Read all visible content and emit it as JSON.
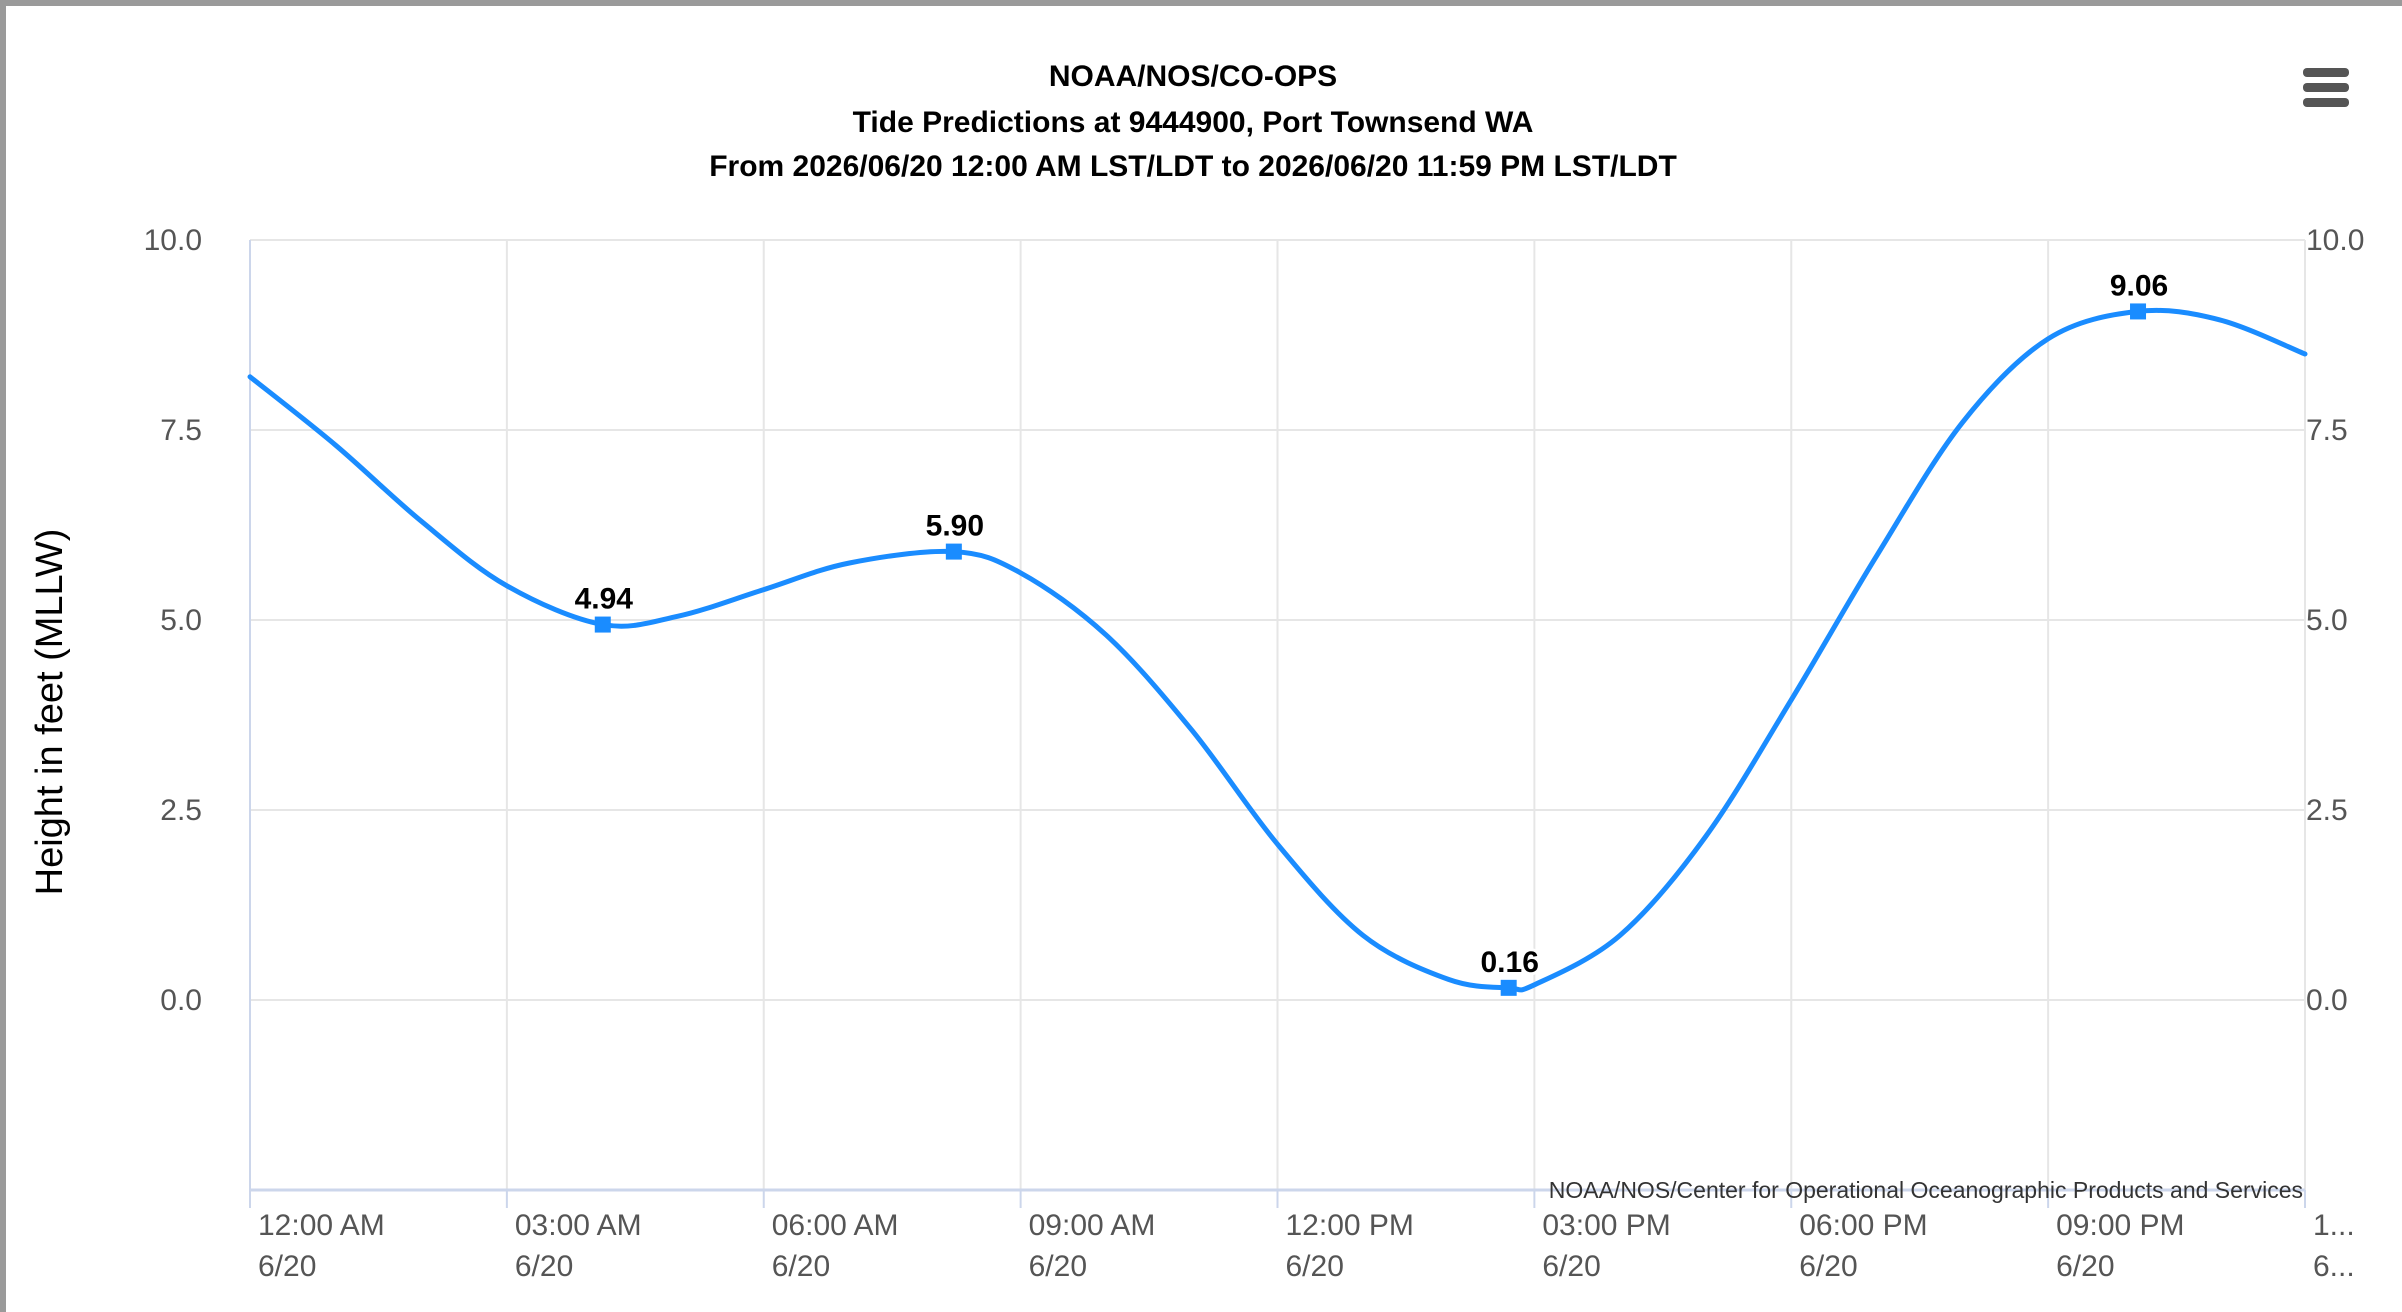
{
  "chart_data": {
    "type": "line",
    "title": "NOAA/NOS/CO-OPS",
    "subtitle": [
      "Tide Predictions at 9444900, Port Townsend WA",
      "From 2026/06/20 12:00 AM LST/LDT to 2026/06/20 11:59 PM LST/LDT"
    ],
    "ylabel": "Height in feet (MLLW)",
    "xlabel": "",
    "ylim": [
      -2.5,
      10.0
    ],
    "xlim_hours": [
      0,
      24
    ],
    "y_ticks": [
      "10.0",
      "7.5",
      "5.0",
      "2.5",
      "0.0"
    ],
    "y_tick_values": [
      10.0,
      7.5,
      5.0,
      2.5,
      0.0
    ],
    "x_ticks": [
      {
        "hour": 0,
        "time": "12:00 AM",
        "date": "6/20"
      },
      {
        "hour": 3,
        "time": "03:00 AM",
        "date": "6/20"
      },
      {
        "hour": 6,
        "time": "06:00 AM",
        "date": "6/20"
      },
      {
        "hour": 9,
        "time": "09:00 AM",
        "date": "6/20"
      },
      {
        "hour": 12,
        "time": "12:00 PM",
        "date": "6/20"
      },
      {
        "hour": 15,
        "time": "03:00 PM",
        "date": "6/20"
      },
      {
        "hour": 18,
        "time": "06:00 PM",
        "date": "6/20"
      },
      {
        "hour": 21,
        "time": "09:00 PM",
        "date": "6/20"
      },
      {
        "hour": 24,
        "time": "1...",
        "date": "6..."
      }
    ],
    "series": [
      {
        "color": "#1a8cff",
        "x_hours": [
          0,
          1,
          2,
          3,
          4.12,
          5,
          6,
          7,
          8.22,
          9,
          10,
          11,
          12,
          13,
          14,
          14.7,
          15,
          16,
          17,
          18,
          19,
          20,
          21,
          22.05,
          23,
          24
        ],
        "y": [
          8.2,
          7.3,
          6.3,
          5.45,
          4.94,
          5.05,
          5.4,
          5.75,
          5.9,
          5.62,
          4.8,
          3.55,
          2.05,
          0.85,
          0.27,
          0.16,
          0.2,
          0.85,
          2.15,
          3.95,
          5.85,
          7.6,
          8.7,
          9.06,
          8.95,
          8.5
        ]
      }
    ],
    "extremes": [
      {
        "x_hours": 4.12,
        "y": 4.94,
        "label": "4.94"
      },
      {
        "x_hours": 8.22,
        "y": 5.9,
        "label": "5.90"
      },
      {
        "x_hours": 14.7,
        "y": 0.16,
        "label": "0.16"
      },
      {
        "x_hours": 22.05,
        "y": 9.06,
        "label": "9.06"
      }
    ],
    "grid": true,
    "credits": "NOAA/NOS/Center for Operational Oceanographic Products and Services"
  },
  "colors": {
    "line": "#1a8cff",
    "grid": "#e6e6e6",
    "axis": "#ccd6eb"
  },
  "menu": {
    "icon": "hamburger-menu-icon"
  }
}
